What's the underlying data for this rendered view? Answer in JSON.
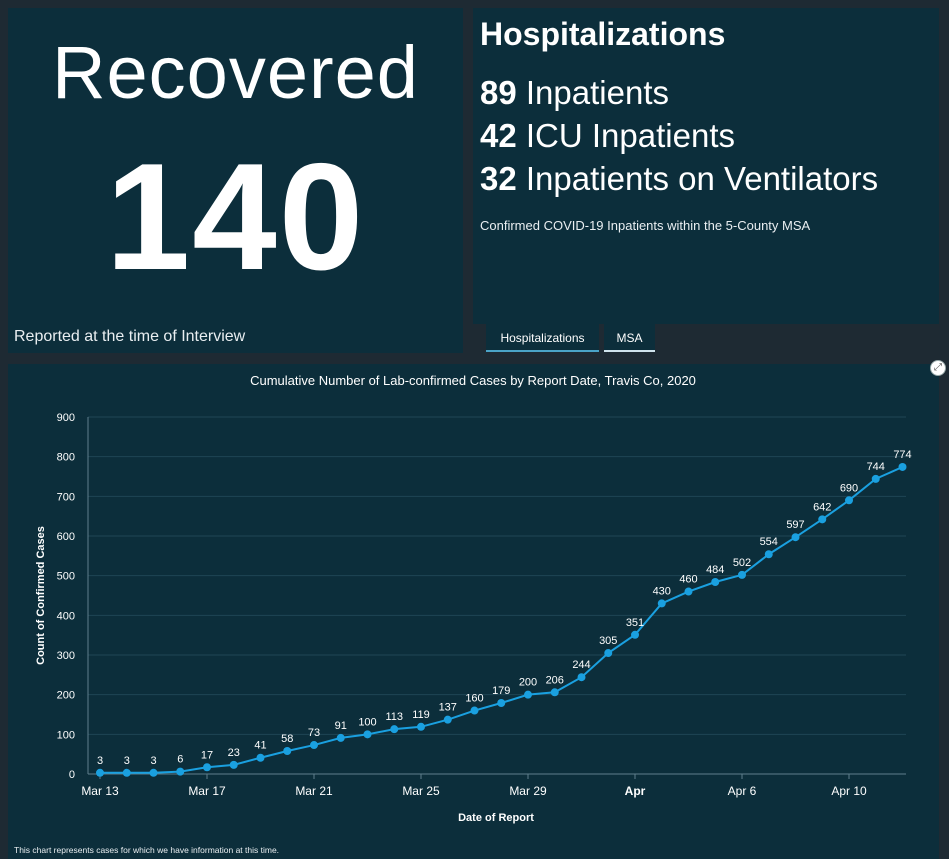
{
  "recovered": {
    "title": "Recovered",
    "value": "140",
    "note": "Reported at the time of Interview"
  },
  "hospitalizations": {
    "title": "Hospitalizations",
    "lines": [
      {
        "number": "89",
        "label": "Inpatients"
      },
      {
        "number": "42",
        "label": "ICU Inpatients"
      },
      {
        "number": "32",
        "label": "Inpatients on Ventilators"
      }
    ],
    "note": "Confirmed COVID-19 Inpatients within the 5-County MSA"
  },
  "tabs": [
    {
      "label": "Hospitalizations",
      "active": true
    },
    {
      "label": "MSA",
      "active": false
    }
  ],
  "colors": {
    "panel": "#0c2e3b",
    "background": "#1e2a33",
    "series": "#1aa0e0",
    "grid": "#1f4555"
  },
  "chart_footnote": "This chart represents cases for which we have information at this time.",
  "expand_icon": "expand-icon",
  "chart_data": {
    "type": "line",
    "title": "Cumulative Number of Lab-confirmed Cases by Report Date, Travis Co, 2020",
    "xlabel": "Date of Report",
    "ylabel": "Count of Confirmed Cases",
    "ylim": [
      0,
      900
    ],
    "yticks": [
      0,
      100,
      200,
      300,
      400,
      500,
      600,
      700,
      800,
      900
    ],
    "grid": true,
    "x": [
      "2020-03-13",
      "2020-03-14",
      "2020-03-15",
      "2020-03-16",
      "2020-03-17",
      "2020-03-18",
      "2020-03-19",
      "2020-03-20",
      "2020-03-21",
      "2020-03-22",
      "2020-03-23",
      "2020-03-24",
      "2020-03-25",
      "2020-03-26",
      "2020-03-27",
      "2020-03-28",
      "2020-03-29",
      "2020-03-30",
      "2020-03-31",
      "2020-04-01",
      "2020-04-02",
      "2020-04-03",
      "2020-04-04",
      "2020-04-05",
      "2020-04-06",
      "2020-04-07",
      "2020-04-08",
      "2020-04-09",
      "2020-04-10",
      "2020-04-11",
      "2020-04-12"
    ],
    "values": [
      3,
      3,
      3,
      6,
      17,
      23,
      41,
      58,
      73,
      91,
      100,
      113,
      119,
      137,
      160,
      179,
      200,
      206,
      244,
      305,
      351,
      430,
      460,
      484,
      502,
      554,
      597,
      642,
      690,
      744,
      774
    ],
    "xticks": [
      {
        "date": "2020-03-13",
        "label": "Mar 13",
        "bold": false
      },
      {
        "date": "2020-03-17",
        "label": "Mar 17",
        "bold": false
      },
      {
        "date": "2020-03-21",
        "label": "Mar 21",
        "bold": false
      },
      {
        "date": "2020-03-25",
        "label": "Mar 25",
        "bold": false
      },
      {
        "date": "2020-03-29",
        "label": "Mar 29",
        "bold": false
      },
      {
        "date": "2020-04-02",
        "label": "Apr",
        "bold": true
      },
      {
        "date": "2020-04-06",
        "label": "Apr 6",
        "bold": false
      },
      {
        "date": "2020-04-10",
        "label": "Apr 10",
        "bold": false
      }
    ]
  }
}
